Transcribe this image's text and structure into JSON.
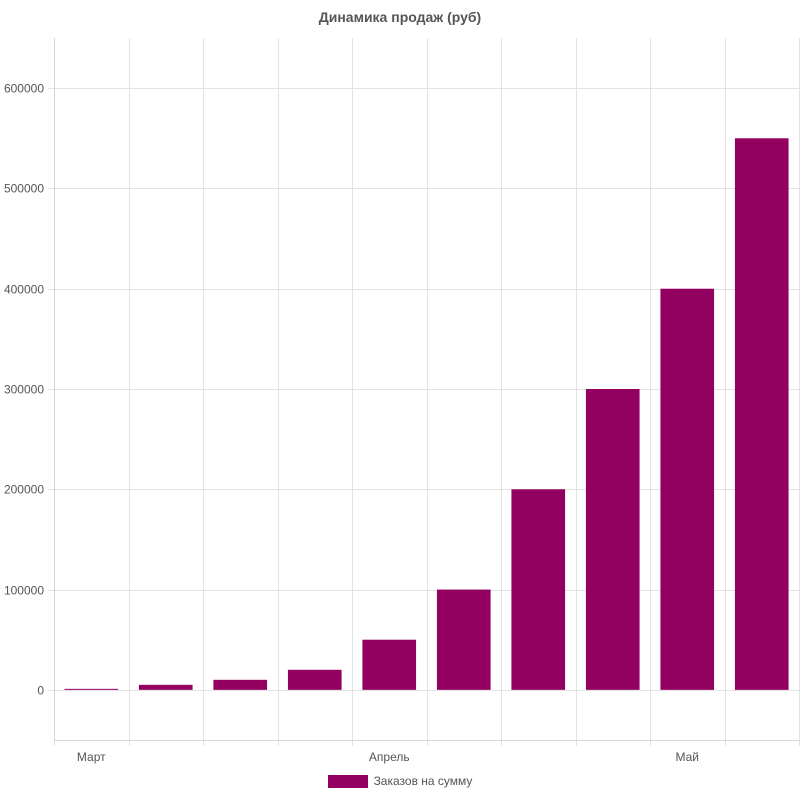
{
  "chart_data": {
    "type": "bar",
    "title": "Динамика продаж (руб)",
    "xlabel": "",
    "ylabel": "",
    "ylim": [
      -50000,
      650000
    ],
    "yticks": [
      0,
      100000,
      200000,
      300000,
      400000,
      500000,
      600000
    ],
    "y_tick_labels": [
      "0",
      "100000",
      "200000",
      "300000",
      "400000",
      "500000",
      "600000"
    ],
    "x_tick_labels": [
      {
        "label": "Март",
        "bar_index": 0
      },
      {
        "label": "Апрель",
        "bar_index": 4
      },
      {
        "label": "Май",
        "bar_index": 8
      }
    ],
    "values": [
      1000,
      5000,
      10000,
      20000,
      50000,
      100000,
      200000,
      300000,
      400000,
      550000
    ],
    "series": [
      {
        "name": "Заказов на сумму",
        "color": "#920060"
      }
    ],
    "grid": true,
    "legend_position": "bottom"
  }
}
